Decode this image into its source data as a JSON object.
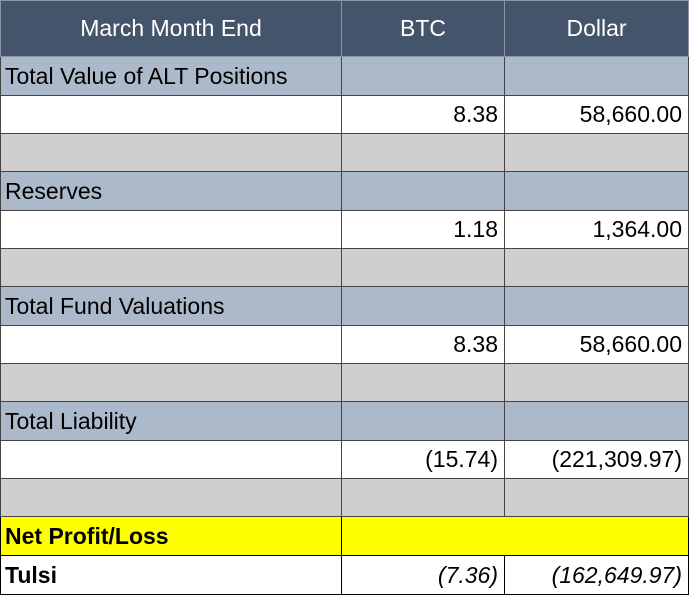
{
  "header": {
    "col1": "March Month End",
    "col2": "BTC",
    "col3": "Dollar"
  },
  "sections": [
    {
      "label": "Total Value of ALT Positions",
      "btc": "8.38",
      "dollar": "58,660.00"
    },
    {
      "label": "Reserves",
      "btc": "1.18",
      "dollar": "1,364.00"
    },
    {
      "label": "Total Fund Valuations",
      "btc": "8.38",
      "dollar": "58,660.00"
    },
    {
      "label": "Total Liability",
      "btc": "(15.74)",
      "dollar": "(221,309.97)"
    }
  ],
  "net": {
    "label": "Net Profit/Loss"
  },
  "tulsi": {
    "label": "Tulsi",
    "btc": "(7.36)",
    "dollar": "(162,649.97)"
  },
  "colors": {
    "header_bg": "#44546a",
    "section_bg": "#acb9ca",
    "gap_bg": "#d0cece",
    "highlight_bg": "#ffff00"
  }
}
